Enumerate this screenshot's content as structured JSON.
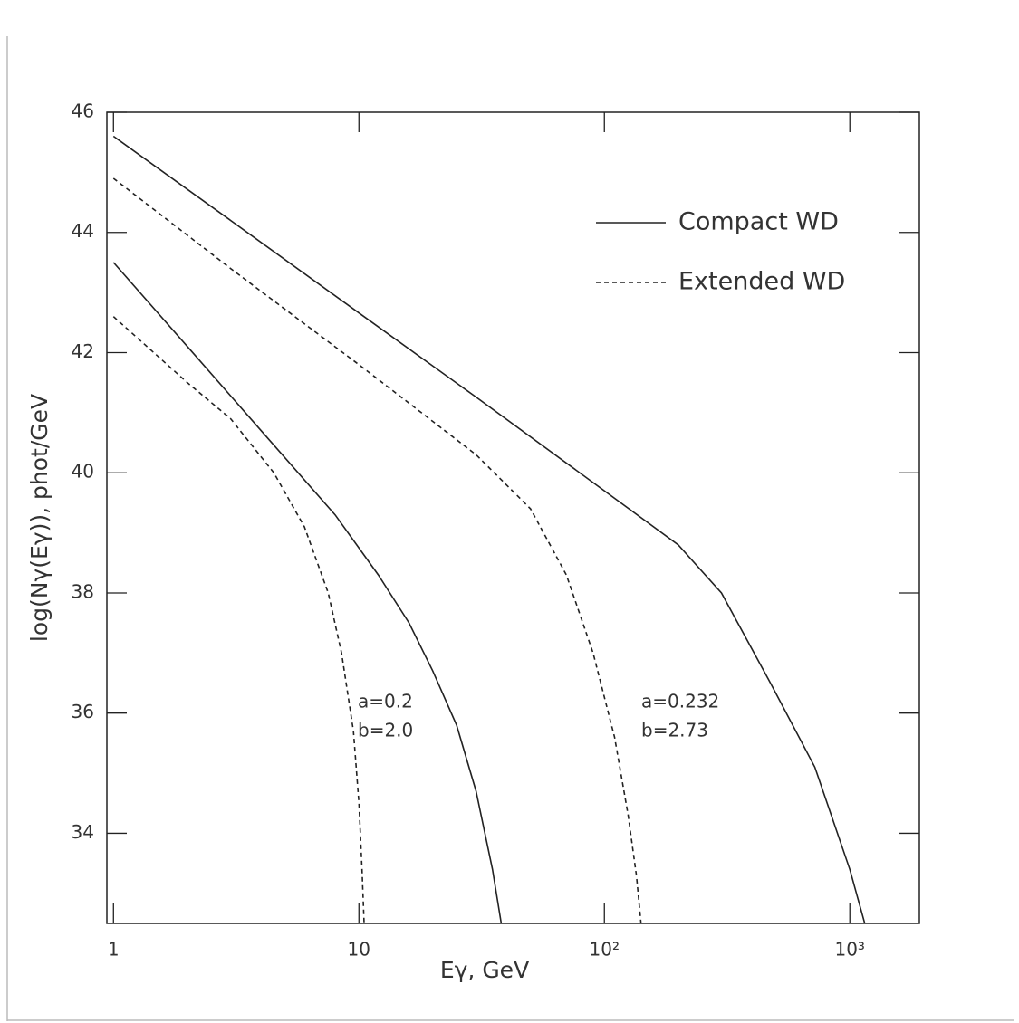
{
  "chart_data": {
    "type": "line",
    "x_label": "Eγ, GeV",
    "y_label": "log(Nγ(Eγ)), phot/GeV",
    "x_log": true,
    "xlim": [
      0.94,
      1920
    ],
    "ylim": [
      32.5,
      46
    ],
    "xticks": [
      1,
      10,
      {
        "value": 100,
        "label": "10²"
      },
      {
        "value": 1000,
        "label": "10³"
      }
    ],
    "yticks": [
      34,
      36,
      38,
      40,
      42,
      44,
      46
    ],
    "legend": "top-right",
    "series": [
      {
        "name": "Compact WD",
        "color": "#222222",
        "dashed": false,
        "x": [
          1,
          3,
          10,
          30,
          100,
          200,
          300,
          475,
          720,
          1000,
          1150
        ],
        "values": [
          45.6,
          44.2,
          42.66,
          41.26,
          39.7,
          38.8,
          38.0,
          36.5,
          35.1,
          33.4,
          32.5
        ]
      },
      {
        "name": "Extended WD",
        "color": "#222222",
        "dashed": true,
        "x": [
          1,
          3,
          10,
          30,
          50,
          70,
          90,
          110,
          125,
          135,
          141
        ],
        "values": [
          44.9,
          43.4,
          41.8,
          40.3,
          39.4,
          38.3,
          37.0,
          35.6,
          34.3,
          33.3,
          32.5
        ]
      },
      {
        "name": "Compact WD",
        "color": "#222222",
        "dashed": false,
        "x": [
          1,
          2,
          4,
          8,
          12,
          16,
          20,
          25,
          30,
          35,
          38
        ],
        "values": [
          43.5,
          42.1,
          40.7,
          39.3,
          38.3,
          37.5,
          36.7,
          35.8,
          34.7,
          33.4,
          32.5
        ]
      },
      {
        "name": "Extended WD",
        "color": "#222222",
        "dashed": true,
        "x": [
          1,
          2,
          3,
          4.5,
          6,
          7.5,
          8.5,
          9.5,
          10,
          10.3,
          10.5
        ],
        "values": [
          42.6,
          41.5,
          40.9,
          40.0,
          39.1,
          38.0,
          37.0,
          35.7,
          34.5,
          33.4,
          32.5
        ]
      }
    ],
    "annotations": [
      "a=0.2",
      "b=2.0",
      "a=0.232",
      "b=2.73"
    ]
  }
}
